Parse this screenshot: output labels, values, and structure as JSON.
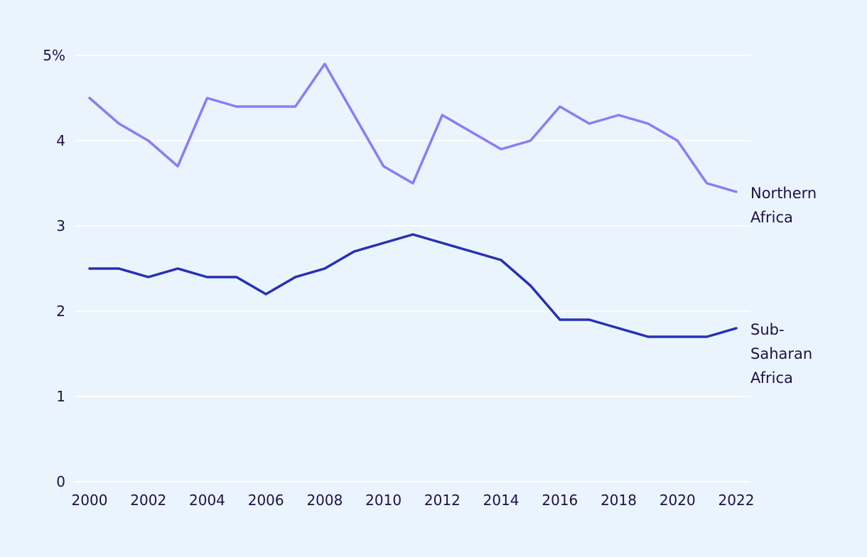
{
  "chart_data": {
    "type": "line",
    "title": "",
    "xlabel": "",
    "ylabel": "",
    "x": [
      2000,
      2001,
      2002,
      2003,
      2004,
      2005,
      2006,
      2007,
      2008,
      2009,
      2010,
      2011,
      2012,
      2013,
      2014,
      2015,
      2016,
      2017,
      2018,
      2019,
      2020,
      2021,
      2022
    ],
    "xlim": [
      2000,
      2022
    ],
    "ylim": [
      0,
      5
    ],
    "y_ticks": [
      0,
      1,
      2,
      3,
      4,
      5
    ],
    "y_tick_labels": [
      "0",
      "1",
      "2",
      "3",
      "4",
      "5%"
    ],
    "x_ticks": [
      2000,
      2002,
      2004,
      2006,
      2008,
      2010,
      2012,
      2014,
      2016,
      2018,
      2020,
      2022
    ],
    "x_tick_labels": [
      "2000",
      "2002",
      "2004",
      "2006",
      "2008",
      "2010",
      "2012",
      "2014",
      "2016",
      "2018",
      "2020",
      "2022"
    ],
    "grid": true,
    "legend": "inline labels at line ends",
    "series": [
      {
        "name": "Northern Africa",
        "label_lines": [
          "Northern",
          "Africa"
        ],
        "color": "#8b7cf6",
        "values": [
          4.5,
          4.2,
          4.0,
          3.7,
          4.5,
          4.4,
          4.4,
          4.4,
          4.9,
          4.3,
          3.7,
          3.5,
          4.3,
          4.1,
          3.9,
          4.0,
          4.4,
          4.2,
          4.3,
          4.2,
          4.0,
          3.5,
          3.4
        ]
      },
      {
        "name": "Sub-Saharan Africa",
        "label_lines": [
          "Sub-",
          "Saharan",
          "Africa"
        ],
        "color": "#2630b5",
        "values": [
          2.5,
          2.5,
          2.4,
          2.5,
          2.4,
          2.4,
          2.2,
          2.4,
          2.5,
          2.7,
          2.8,
          2.9,
          2.8,
          2.7,
          2.6,
          2.3,
          1.9,
          1.9,
          1.8,
          1.7,
          1.7,
          1.7,
          1.8
        ]
      }
    ]
  }
}
